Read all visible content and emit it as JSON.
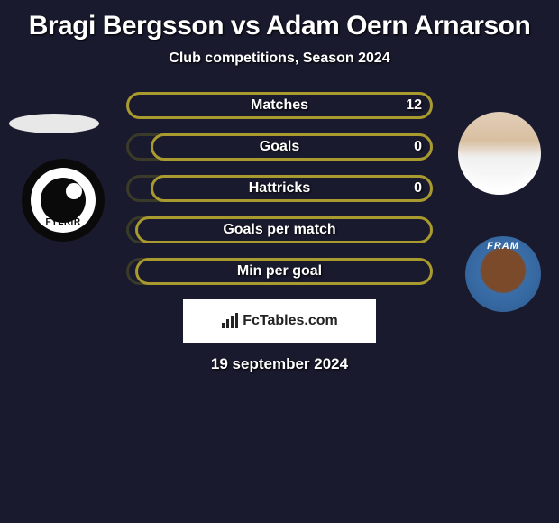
{
  "title": "Bragi Bergsson vs Adam Oern Arnarson",
  "subtitle": "Club competitions, Season 2024",
  "stats": [
    {
      "label": "Matches",
      "right_value": "12",
      "right_width_pct": 100
    },
    {
      "label": "Goals",
      "right_value": "0",
      "right_width_pct": 92
    },
    {
      "label": "Hattricks",
      "right_value": "0",
      "right_width_pct": 92
    },
    {
      "label": "Goals per match",
      "right_value": "",
      "right_width_pct": 97
    },
    {
      "label": "Min per goal",
      "right_value": "",
      "right_width_pct": 97
    }
  ],
  "colors": {
    "bar_left": "#3a3a28",
    "bar_right": "#a89a2e",
    "background": "#1a1a2e",
    "text": "#ffffff"
  },
  "club_left_label": "FYLKIR",
  "club_right_label": "FRAM",
  "footer_brand": "FcTables.com",
  "date": "19 september 2024"
}
